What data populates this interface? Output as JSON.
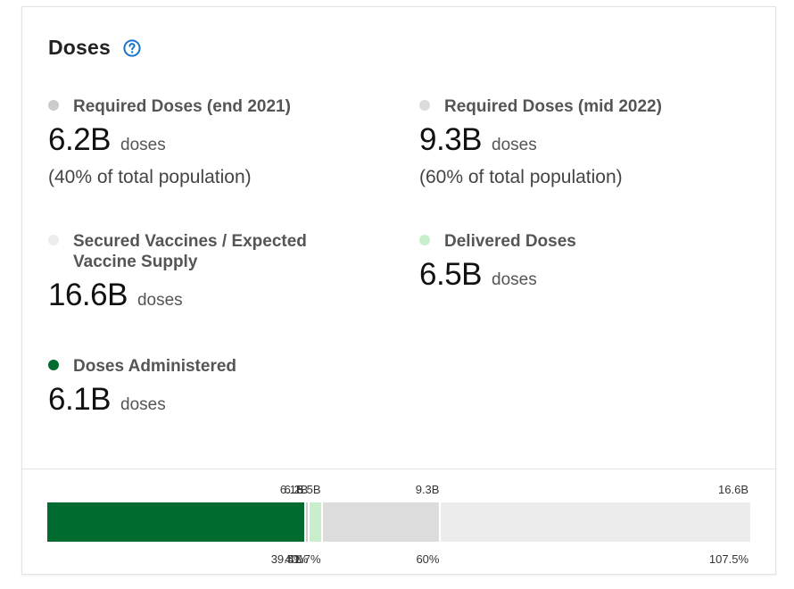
{
  "header": {
    "title": "Doses",
    "help_icon": "help-circle-icon",
    "accent_color": "#1a73c9"
  },
  "metrics": [
    {
      "label": "Required Doses (end 2021)",
      "value": "6.2B",
      "unit": "doses",
      "sub": "(40% of total population)",
      "color": "#cccccc"
    },
    {
      "label": "Required Doses (mid 2022)",
      "value": "9.3B",
      "unit": "doses",
      "sub": "(60% of total population)",
      "color": "#dcdcdc"
    },
    {
      "label_line1": "Secured Vaccines / Expected",
      "label_line2": "Vaccine Supply",
      "value": "16.6B",
      "unit": "doses",
      "color": "#ececec"
    },
    {
      "label": "Delivered Doses",
      "value": "6.5B",
      "unit": "doses",
      "color": "#c8efcc"
    },
    {
      "label": "Doses Administered",
      "value": "6.1B",
      "unit": "doses",
      "color": "#006b2e"
    }
  ],
  "bar": {
    "max_value": 16.6,
    "segments": [
      {
        "name": "doses-administered",
        "value": 6.1,
        "label_top": "6.1B",
        "label_bottom": "39.5%",
        "color": "#006b2e"
      },
      {
        "name": "required-end-2021",
        "value": 6.2,
        "label_top": "6.2B",
        "label_bottom": "40%",
        "color": "#cccccc"
      },
      {
        "name": "delivered-doses",
        "value": 6.5,
        "label_top": "6.5B",
        "label_bottom": "41.7%",
        "color": "#c8efcc"
      },
      {
        "name": "required-mid-2022",
        "value": 9.3,
        "label_top": "9.3B",
        "label_bottom": "60%",
        "color": "#dcdcdc"
      },
      {
        "name": "secured-vaccines",
        "value": 16.6,
        "label_top": "16.6B",
        "label_bottom": "107.5%",
        "color": "#ececec"
      }
    ]
  }
}
